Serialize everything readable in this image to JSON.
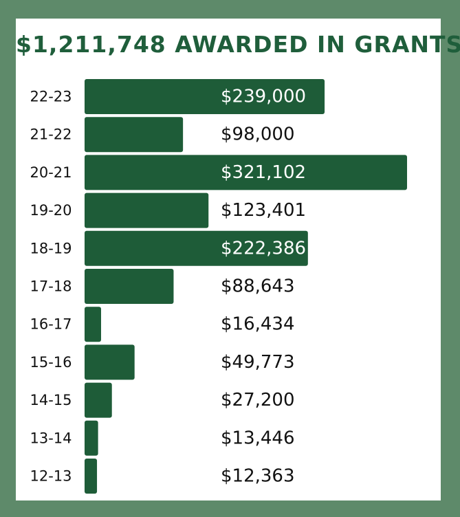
{
  "theme": {
    "background": "#5e8a6a",
    "card": "#ffffff",
    "bar": "#1e5c38",
    "title": "#1f5e3b",
    "text": "#111111"
  },
  "chart_data": {
    "type": "bar",
    "orientation": "horizontal",
    "title": "$1,211,748 AWARDED IN GRANTS",
    "xlabel": "",
    "ylabel": "",
    "grid": false,
    "categories": [
      "22-23",
      "21-22",
      "20-21",
      "19-20",
      "18-19",
      "17-18",
      "16-17",
      "15-16",
      "14-15",
      "13-14",
      "12-13"
    ],
    "values": [
      239000,
      98000,
      321102,
      123401,
      222386,
      88643,
      16434,
      49773,
      27200,
      13446,
      12363
    ],
    "value_labels": [
      "$239,000",
      "$98,000",
      "$321,102",
      "$123,401",
      "$222,386",
      "$88,643",
      "$16,434",
      "$49,773",
      "$27,200",
      "$13,446",
      "$12,363"
    ],
    "xlim": [
      0,
      321102
    ]
  }
}
